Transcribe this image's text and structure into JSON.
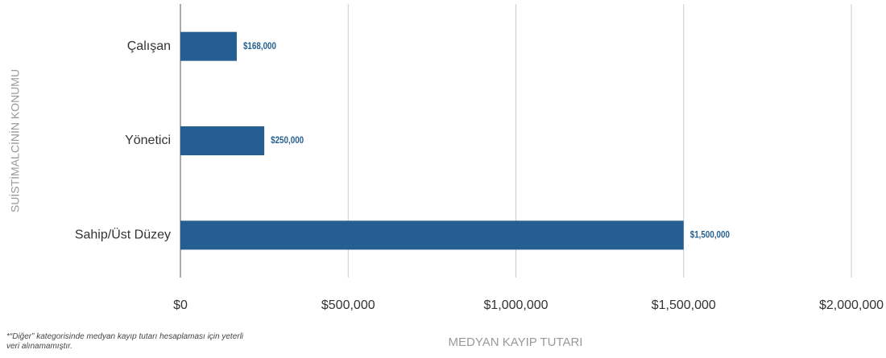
{
  "chart_data": {
    "type": "bar",
    "orientation": "horizontal",
    "categories": [
      "Çalışan",
      "Yönetici",
      "Sahip/Üst Düzey"
    ],
    "values": [
      168000,
      250000,
      1500000
    ],
    "value_labels": [
      "$168,000",
      "$250,000",
      "$1,500,000"
    ],
    "color": "#255f91",
    "xlim": [
      0,
      2000000
    ],
    "xticks": [
      {
        "value": 0,
        "label": "$0"
      },
      {
        "value": 500000,
        "label": "$500,000"
      },
      {
        "value": 1000000,
        "label": "$1,000,000"
      },
      {
        "value": 1500000,
        "label": "$1,500,000"
      },
      {
        "value": 2000000,
        "label": "$2,000,000"
      }
    ],
    "grid": true,
    "xlabel": "MEDYAN KAYIP TUTARI",
    "ylabel": "SUİSTİMALCİNİN KONUMU",
    "footnote": "*“Diğer” kategorisinde medyan kayıp tutarı hesaplaması için yeterli veri alınamamıştır."
  }
}
